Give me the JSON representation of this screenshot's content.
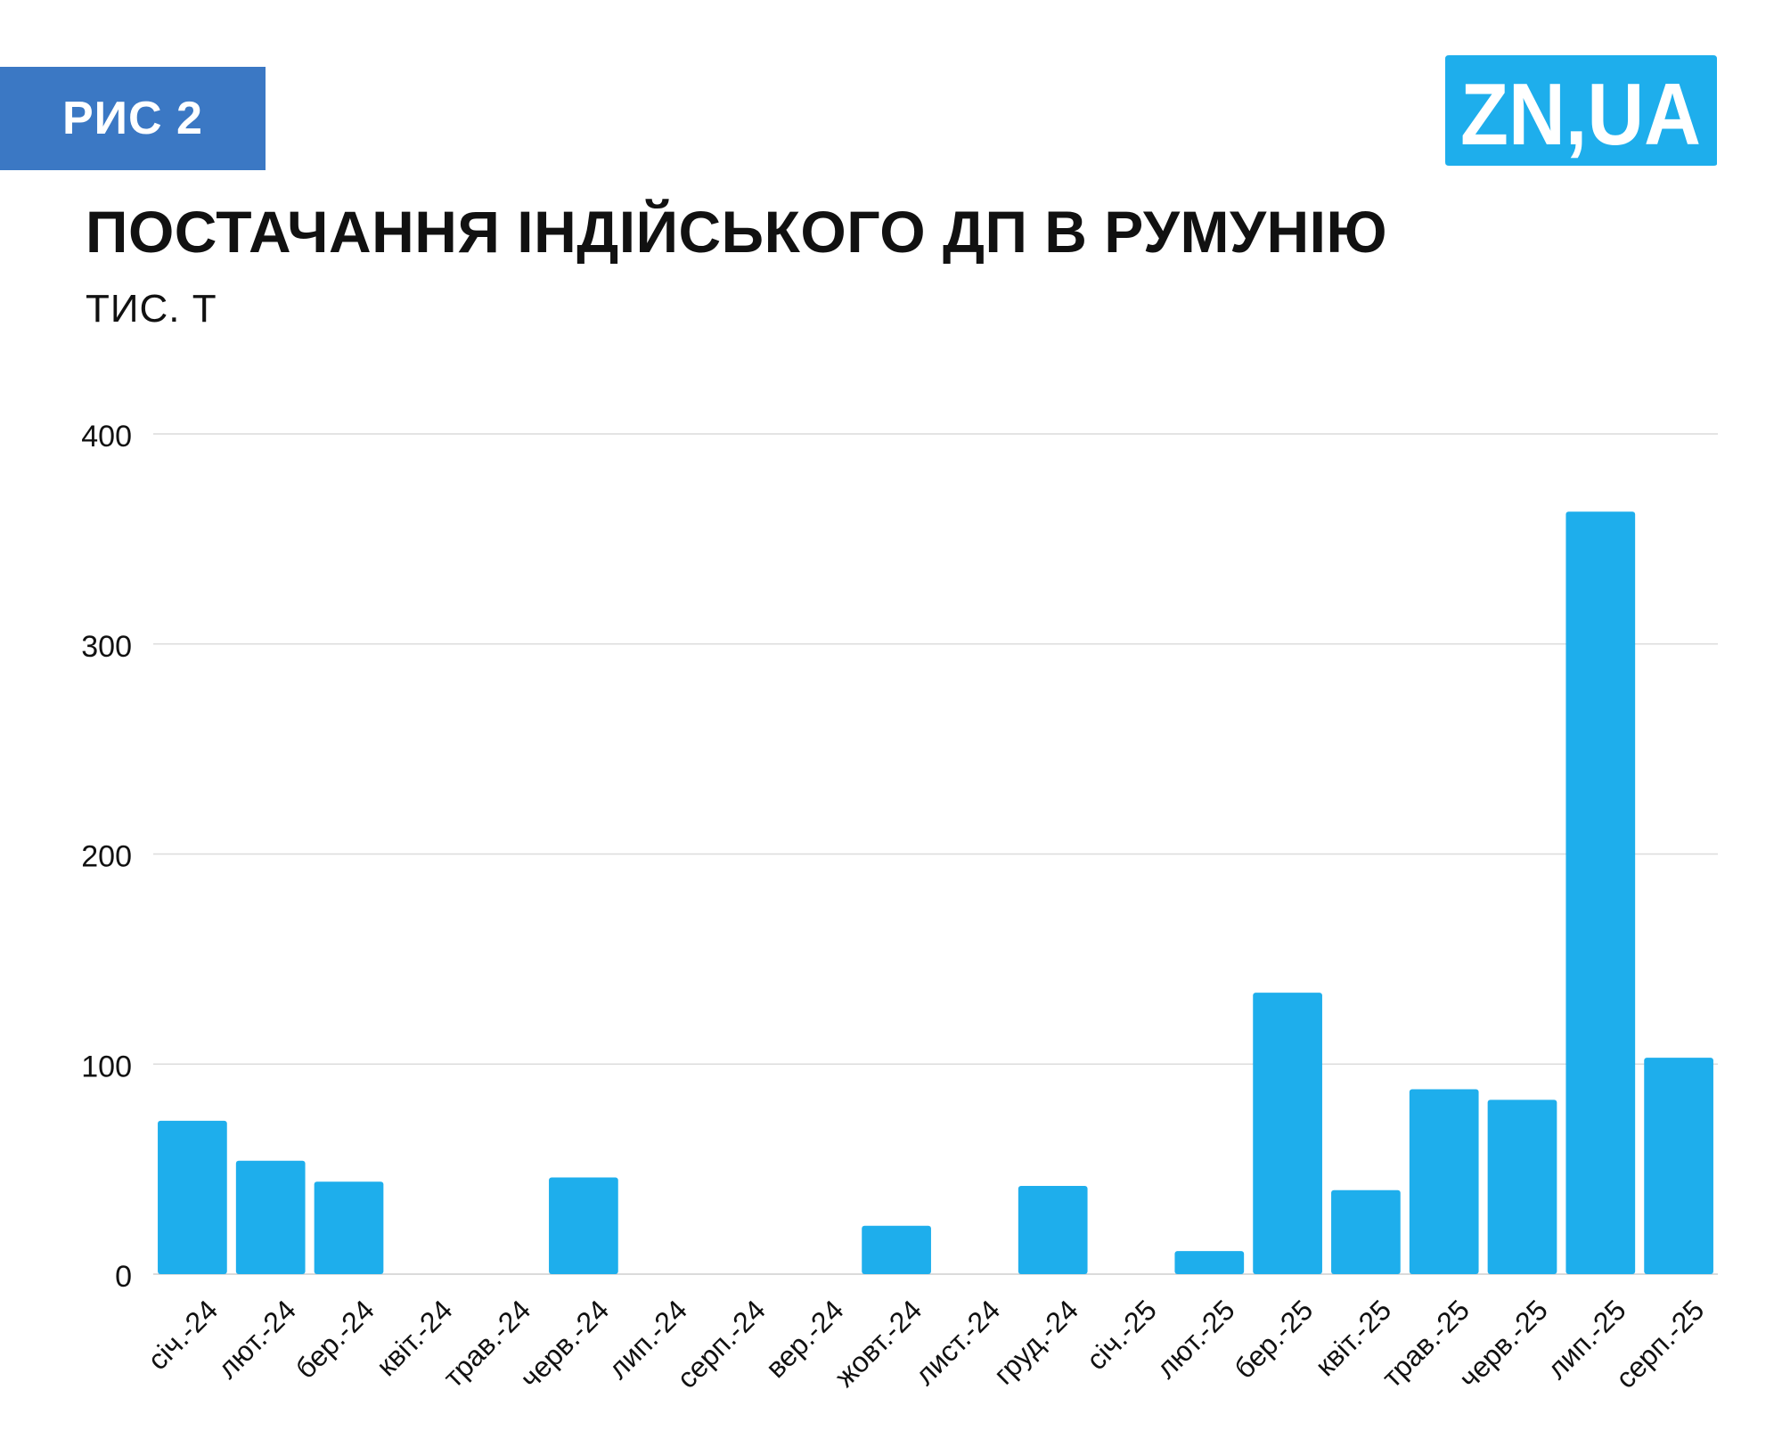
{
  "badge": {
    "label": "РИС 2"
  },
  "logo": {
    "text": "ZN,UA"
  },
  "colors": {
    "bar": "#1eaeec",
    "badge": "#3b78c4",
    "logo": "#1eaeec",
    "grid": "#dcdcdc"
  },
  "chart_data": {
    "type": "bar",
    "title": "ПОСТАЧАННЯ ІНДІЙСЬКОГО ДП В РУМУНІЮ",
    "unit": "ТИС. Т",
    "xlabel": "",
    "ylabel": "",
    "ylim": [
      0,
      400
    ],
    "yticks": [
      0,
      100,
      200,
      300,
      400
    ],
    "grid": true,
    "categories": [
      "січ.-24",
      "лют.-24",
      "бер.-24",
      "квіт.-24",
      "трав.-24",
      "черв.-24",
      "лип.-24",
      "серп.-24",
      "вер.-24",
      "жовт.-24",
      "лист.-24",
      "груд.-24",
      "січ.-25",
      "лют.-25",
      "бер.-25",
      "квіт.-25",
      "трав.-25",
      "черв.-25",
      "лип.-25",
      "серп.-25"
    ],
    "values": [
      73,
      54,
      44,
      0,
      0,
      46,
      0,
      0,
      0,
      23,
      0,
      42,
      0,
      11,
      134,
      40,
      88,
      83,
      363,
      103
    ]
  }
}
